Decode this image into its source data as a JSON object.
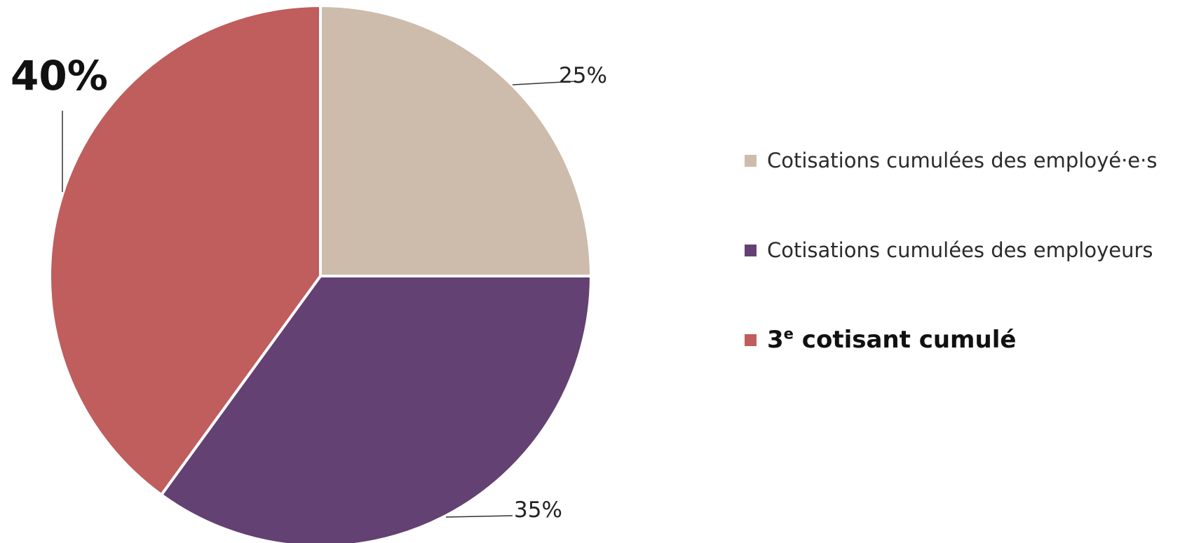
{
  "chart_data": {
    "type": "pie",
    "title": "",
    "start_angle_deg": 0,
    "direction": "clockwise",
    "slices": [
      {
        "label_prefix": "",
        "label_sup": "",
        "label_suffix": "Cotisations cumulées des employé·e·s",
        "value": 25,
        "data_label": "25%",
        "color": "#cdbcab",
        "emphasized": false
      },
      {
        "label_prefix": "",
        "label_sup": "",
        "label_suffix": "Cotisations cumulées des employeurs",
        "value": 35,
        "data_label": "35%",
        "color": "#634173",
        "emphasized": false
      },
      {
        "label_prefix": "3",
        "label_sup": "e",
        "label_suffix": " cotisant cumulé",
        "value": 40,
        "data_label": "40%",
        "color": "#c05d5d",
        "emphasized": true
      }
    ],
    "legend_position": "right",
    "grid": false
  }
}
